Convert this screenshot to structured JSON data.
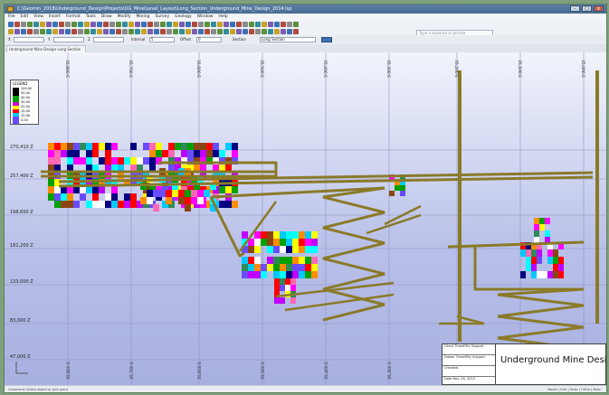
{
  "window": {
    "title": "C:\\Geomin_2018\\Underground_Design\\Projects\\UG_Mine\\Level_Layout\\Long_Section_Underground_Mine_Design_2014.lsp",
    "buttons": {
      "minimize": "–",
      "maximize": "□",
      "close": "×"
    }
  },
  "menu": [
    "File",
    "Edit",
    "View",
    "Insert",
    "Format",
    "Tools",
    "Draw",
    "Modify",
    "Mining",
    "Survey",
    "Geology",
    "Window",
    "Help"
  ],
  "search": {
    "placeholder": "Type a keyword or phrase"
  },
  "options": {
    "field1_label": "X",
    "field2_label": "Y",
    "field3_label": "Z",
    "field4_label": "Interval",
    "field4_value": "5",
    "field5_label": "Offset",
    "field5_value": "0",
    "dropdown_label": "Section",
    "dropdown_value": "Long Section"
  },
  "tab": {
    "label": "Underground Mine Design Long Section"
  },
  "legend": {
    "title": "LEGEND",
    "values": [
      "100.00",
      "50.00",
      "40.00",
      "30.00",
      "20.00",
      "15.00",
      "10.00",
      "5.00"
    ]
  },
  "y_labels": [
    "270,410 Z",
    "257,400 Z",
    "198,600 Z",
    "181,200 Z",
    "133,000 Z",
    "83,000 Z",
    "47,000 Z"
  ],
  "x_labels": [
    "35,800 E",
    "35,700 E",
    "35,600 E",
    "35,500 E",
    "35,400 E",
    "35,300 E",
    "35,200 E",
    "35,100 E",
    "35,000 E"
  ],
  "x_labels_bottom": [
    "35,800 E",
    "35,700 E",
    "35,600 E",
    "35,500 E",
    "35,400 E",
    "35,300 E"
  ],
  "title_block": {
    "rows": [
      "Client",
      "Drawn",
      "Checked",
      "Date"
    ],
    "client": "ThreeFifty Support",
    "drawn": "ThreeFifty Support",
    "date": "Nov. 28, 2014",
    "title": "Underground Mine Design"
  },
  "status": {
    "left": "Command: Select object or pick point",
    "right": "Model | Grid | Snap | Ortho | Polar"
  },
  "colors": {
    "accent": "#3f6fb0",
    "development": "#8a7a28",
    "background_top": "#f2f4fb",
    "background_bottom": "#a8b0e0"
  }
}
